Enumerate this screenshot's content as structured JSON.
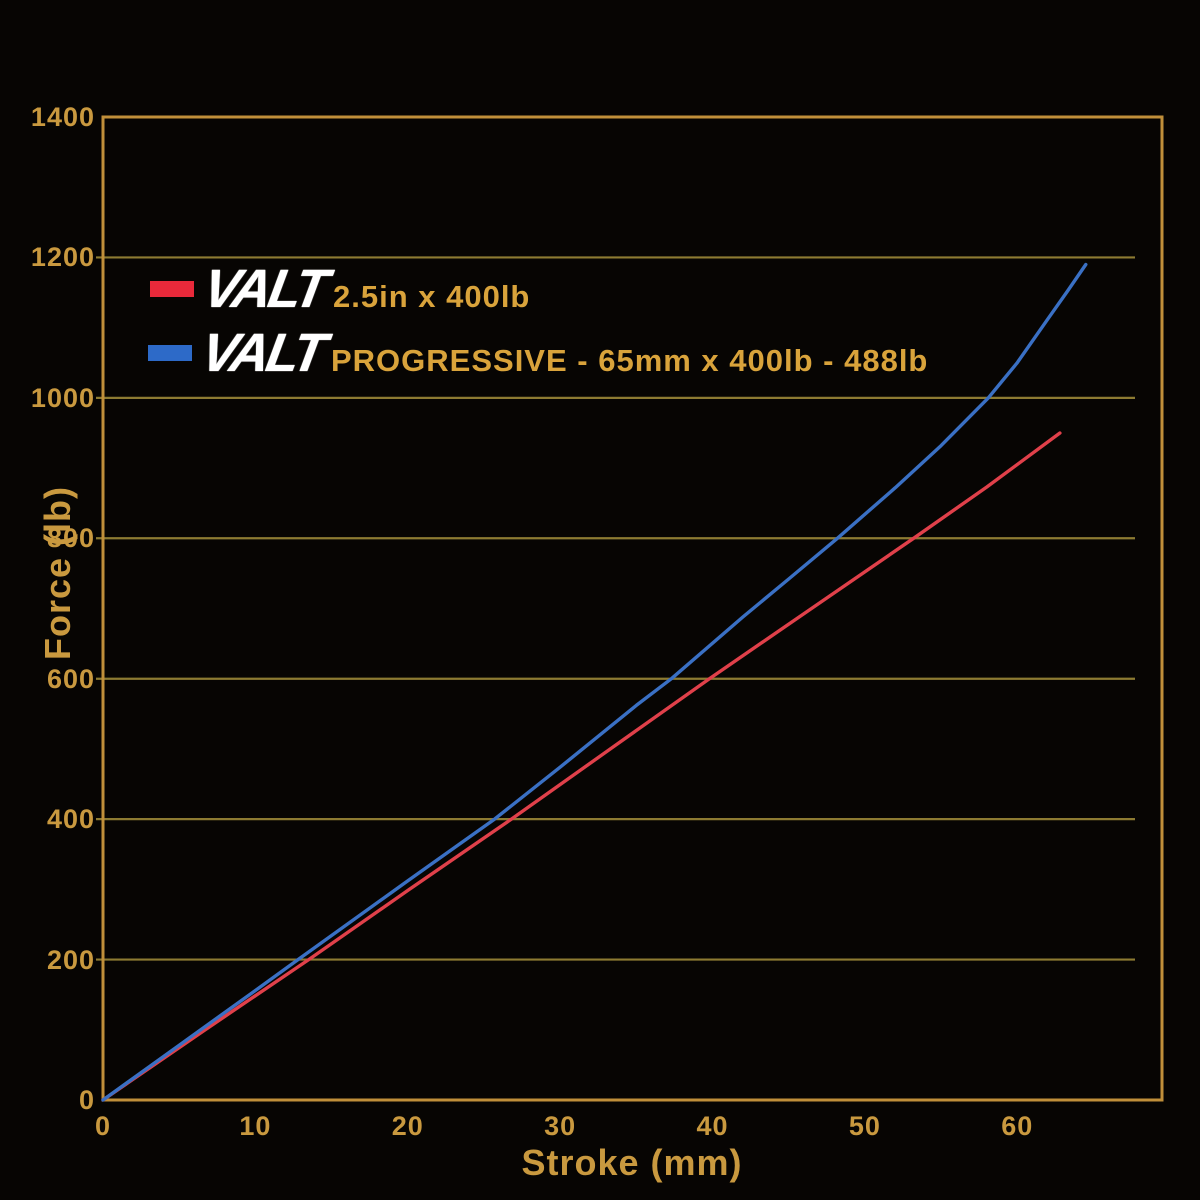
{
  "legend": {
    "items": [
      {
        "brand": "VALT",
        "label": "2.5in x 400lb",
        "swatch": "#e8293a"
      },
      {
        "brand": "VALT",
        "label": "PROGRESSIVE - 65mm x 400lb - 488lb",
        "swatch": "#2d6ac8"
      }
    ]
  },
  "axes": {
    "x_title": "Stroke (mm)",
    "y_title": "Force (lb)"
  },
  "colors": {
    "background": "#070503",
    "axis_border": "#c08f3a",
    "gridline": "#8d7b32",
    "tick_text": "#c9993f",
    "legend_text": "#d9a33b",
    "red_series": "#e0404a",
    "blue_series": "#3a70c4"
  },
  "chart_data": {
    "type": "line",
    "title": "",
    "xlabel": "Stroke (mm)",
    "ylabel": "Force (lb)",
    "xlim": [
      0,
      69.5
    ],
    "ylim": [
      0,
      1400
    ],
    "x_ticks": [
      0,
      10,
      20,
      30,
      40,
      50,
      60
    ],
    "y_ticks": [
      0,
      200,
      400,
      600,
      800,
      1000,
      1200,
      1400
    ],
    "grid": "horizontal",
    "legend_position": "top-left-inside",
    "series": [
      {
        "name": "VALT 2.5in x 400lb",
        "color": "#e0404a",
        "points": [
          [
            0,
            0
          ],
          [
            6.7,
            100
          ],
          [
            13.5,
            200
          ],
          [
            20.1,
            300
          ],
          [
            26.8,
            400
          ],
          [
            33.3,
            500
          ],
          [
            39.8,
            600
          ],
          [
            46.5,
            700
          ],
          [
            53.2,
            800
          ],
          [
            58,
            873
          ],
          [
            62.8,
            950
          ]
        ]
      },
      {
        "name": "VALT PROGRESSIVE - 65mm x 400lb - 488lb",
        "color": "#3a70c4",
        "points": [
          [
            0,
            0
          ],
          [
            5,
            78
          ],
          [
            10,
            156
          ],
          [
            12.8,
            200
          ],
          [
            20,
            312
          ],
          [
            25.7,
            400
          ],
          [
            30,
            474
          ],
          [
            35,
            562
          ],
          [
            37.3,
            600
          ],
          [
            42,
            688
          ],
          [
            45,
            742
          ],
          [
            48.2,
            800
          ],
          [
            52,
            872
          ],
          [
            55,
            932
          ],
          [
            58.1,
            1000
          ],
          [
            60,
            1050
          ],
          [
            62,
            1112
          ],
          [
            63.3,
            1152
          ],
          [
            64.5,
            1190
          ]
        ]
      }
    ]
  }
}
